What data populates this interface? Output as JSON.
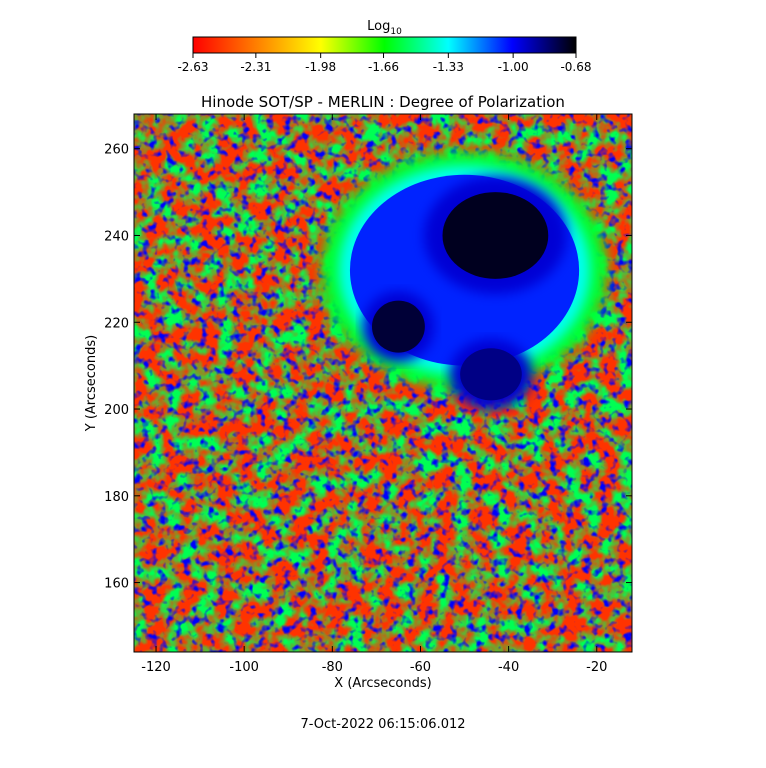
{
  "chart_data": {
    "type": "heatmap",
    "title": "Hinode SOT/SP - MERLIN : Degree of Polarization",
    "xlabel": "X (Arcseconds)",
    "ylabel": "Y (Arcseconds)",
    "xlim": [
      -125,
      -12
    ],
    "ylim": [
      144,
      268
    ],
    "x_ticks": [
      -120,
      -100,
      -80,
      -60,
      -40,
      -20
    ],
    "y_ticks": [
      160,
      180,
      200,
      220,
      240,
      260
    ],
    "colorbar": {
      "label": "Log10",
      "label_base": "Log",
      "label_sub": "10",
      "range": [
        -2.63,
        -0.68
      ],
      "tick_labels": [
        "-2.63",
        "-2.31",
        "-1.98",
        "-1.66",
        "-1.33",
        "-1.00",
        "-0.68"
      ],
      "tick_values": [
        -2.63,
        -2.31,
        -1.98,
        -1.66,
        -1.33,
        -1.0,
        -0.68
      ],
      "colormap": [
        "#ff0000",
        "#ff8000",
        "#ffff00",
        "#00ff00",
        "#00ffff",
        "#0000ff",
        "#000000"
      ]
    },
    "features": [
      {
        "name": "sunspot-umbra-large",
        "x": -43,
        "y": 240,
        "rx": 12,
        "ry": 10,
        "value": -0.72
      },
      {
        "name": "sunspot-umbra-small",
        "x": -65,
        "y": 219,
        "rx": 6,
        "ry": 6,
        "value": -0.75
      },
      {
        "name": "pore-southeast",
        "x": -44,
        "y": 208,
        "rx": 7,
        "ry": 6,
        "value": -0.85
      },
      {
        "name": "penumbra",
        "x": -50,
        "y": 232,
        "rx": 26,
        "ry": 22,
        "value": -1.05
      }
    ],
    "background_value": -2.5
  },
  "footer": {
    "timestamp": "7-Oct-2022 06:15:06.012"
  }
}
